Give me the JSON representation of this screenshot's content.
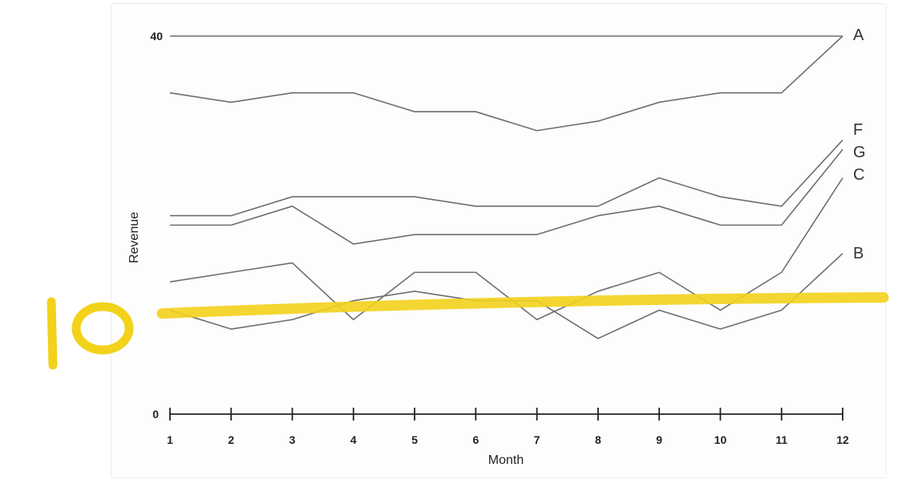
{
  "chart_data": {
    "type": "line",
    "xlabel": "Month",
    "ylabel": "Revenue",
    "x": [
      1,
      2,
      3,
      4,
      5,
      6,
      7,
      8,
      9,
      10,
      11,
      12
    ],
    "x_tick_labels": [
      "1",
      "2",
      "3",
      "4",
      "5",
      "6",
      "7",
      "8",
      "9",
      "10",
      "11",
      "12"
    ],
    "ylim": [
      0,
      40
    ],
    "y_tick_labels": [
      "0",
      "40"
    ],
    "y_ticks": [
      0,
      40
    ],
    "grid": false,
    "legend": "none",
    "series_label_placement": "right end of each line",
    "series": [
      {
        "name": "A",
        "values": [
          40,
          40,
          40,
          40,
          40,
          40,
          40,
          40,
          40,
          40,
          40,
          40
        ]
      },
      {
        "values": [
          34,
          33,
          34,
          34,
          32,
          32,
          30,
          31,
          33,
          34,
          34,
          40
        ]
      },
      {
        "name": "F",
        "values": [
          21,
          21,
          23,
          23,
          23,
          22,
          22,
          22,
          25,
          23,
          22,
          29
        ]
      },
      {
        "name": "G",
        "values": [
          20,
          20,
          22,
          18,
          19,
          19,
          19,
          21,
          22,
          20,
          20,
          28
        ]
      },
      {
        "name": "C",
        "values": [
          14,
          15,
          16,
          10,
          15,
          15,
          10,
          13,
          15,
          11,
          15,
          25
        ]
      },
      {
        "name": "B",
        "values": [
          11,
          9,
          10,
          12,
          13,
          12,
          12,
          8,
          11,
          9,
          11,
          17
        ]
      }
    ],
    "annotations": [
      {
        "type": "handwritten-text",
        "text": "10",
        "color": "#f2d21b"
      },
      {
        "type": "highlighter-line",
        "y": 11.5,
        "color": "#f2d21b"
      }
    ]
  },
  "colors": {
    "series_line": "#6e6e6e",
    "axis": "#222222",
    "highlighter": "#f2d21b"
  }
}
